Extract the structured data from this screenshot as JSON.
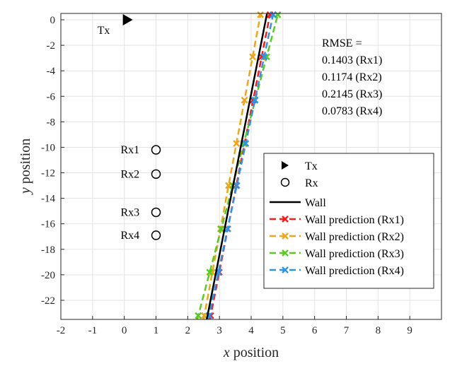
{
  "chart_data": {
    "type": "line",
    "xlabel": {
      "var": "x",
      "rest": " position"
    },
    "ylabel": {
      "var": "y",
      "rest": " position"
    },
    "xlim": [
      -2,
      10
    ],
    "ylim": [
      -23.5,
      0.5
    ],
    "xticks": [
      "-2",
      "-1",
      "0",
      "1",
      "2",
      "3",
      "4",
      "5",
      "6",
      "7",
      "8",
      "9"
    ],
    "yticks": [
      "0",
      "-2",
      "-4",
      "-6",
      "-8",
      "-10",
      "-12",
      "-14",
      "-16",
      "-18",
      "-20",
      "-22"
    ],
    "grid": true,
    "tx": {
      "x": 0,
      "y": 0,
      "label": "Tx"
    },
    "receivers": [
      {
        "label": "Rx1",
        "x": 1,
        "y": -10.2
      },
      {
        "label": "Rx2",
        "x": 1,
        "y": -12.1
      },
      {
        "label": "Rx3",
        "x": 1,
        "y": -15.1
      },
      {
        "label": "Rx4",
        "x": 1,
        "y": -16.9
      }
    ],
    "wall": {
      "name": "Wall",
      "x": [
        2.6,
        4.5
      ],
      "y": [
        -23.5,
        0.5
      ]
    },
    "series": [
      {
        "name": "Wall prediction (Rx1)",
        "color": "#ff1a1a",
        "x": [
          2.7,
          4.6
        ],
        "y": [
          -23.5,
          0.5
        ],
        "markers_y": [
          -23.2,
          -19.8,
          -16.4,
          -13.0,
          -9.7,
          -6.3,
          -2.9,
          0.4
        ]
      },
      {
        "name": "Wall prediction (Rx2)",
        "color": "#f2a516",
        "x": [
          2.5,
          4.3
        ],
        "y": [
          -23.5,
          0.5
        ],
        "markers_y": [
          -23.2,
          -19.8,
          -16.4,
          -13.0,
          -9.7,
          -6.3,
          -2.9,
          0.4
        ]
      },
      {
        "name": "Wall prediction (Rx3)",
        "color": "#57cc1e",
        "x": [
          2.3,
          4.85
        ],
        "y": [
          -23.5,
          0.5
        ],
        "markers_y": [
          -23.2,
          -19.8,
          -16.4,
          -13.0,
          -9.7,
          -6.3,
          -2.9,
          0.4
        ]
      },
      {
        "name": "Wall prediction (Rx4)",
        "color": "#2b95ec",
        "x": [
          2.65,
          4.7
        ],
        "y": [
          -23.5,
          0.5
        ],
        "markers_y": [
          -23.2,
          -19.8,
          -16.4,
          -13.0,
          -9.7,
          -6.3,
          -2.9,
          0.4
        ]
      }
    ],
    "rmse": {
      "title": "RMSE =",
      "lines": [
        "0.1403 (Rx1)",
        "0.1174 (Rx2)",
        "0.2145 (Rx3)",
        "0.0783 (Rx4)"
      ]
    },
    "legend": {
      "position": "lower-right",
      "tx": "Tx",
      "rx": "Rx",
      "wall": "Wall"
    }
  }
}
